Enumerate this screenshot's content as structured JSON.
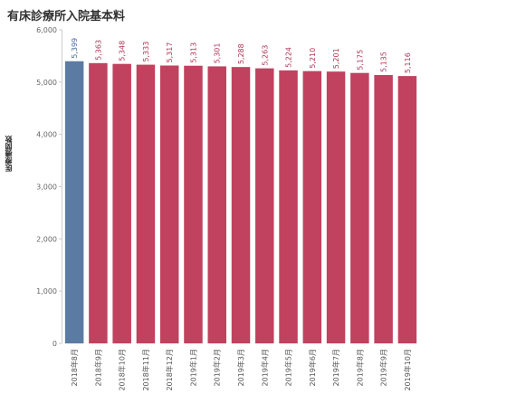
{
  "title": "有床診療所入院基本料",
  "chart_data": {
    "type": "bar",
    "title": "有床診療所入院基本料",
    "xlabel": "",
    "ylabel": "医療機関数",
    "ylim": [
      0,
      6000
    ],
    "yticks": [
      0,
      1000,
      2000,
      3000,
      4000,
      5000,
      6000
    ],
    "ytick_labels": [
      "0",
      "1,000",
      "2,000",
      "3,000",
      "4,000",
      "5,000",
      "6,000"
    ],
    "grid": false,
    "categories": [
      "2018年8月",
      "2018年9月",
      "2018年10月",
      "2018年11月",
      "2018年12月",
      "2019年1月",
      "2019年2月",
      "2019年3月",
      "2019年4月",
      "2019年5月",
      "2019年6月",
      "2019年7月",
      "2019年8月",
      "2019年9月",
      "2019年10月"
    ],
    "values": [
      5399,
      5363,
      5348,
      5333,
      5317,
      5313,
      5301,
      5288,
      5263,
      5224,
      5210,
      5201,
      5175,
      5135,
      5116
    ],
    "value_labels": [
      "5,399",
      "5,363",
      "5,348",
      "5,333",
      "5,317",
      "5,313",
      "5,301",
      "5,288",
      "5,263",
      "5,224",
      "5,210",
      "5,201",
      "5,175",
      "5,135",
      "5,116"
    ],
    "colors": [
      "#5b7ba3",
      "#c0425f",
      "#c0425f",
      "#c0425f",
      "#c0425f",
      "#c0425f",
      "#c0425f",
      "#c0425f",
      "#c0425f",
      "#c0425f",
      "#c0425f",
      "#c0425f",
      "#c0425f",
      "#c0425f",
      "#c0425f"
    ],
    "label_colors": [
      "#4a6a94",
      "#b03456",
      "#b03456",
      "#b03456",
      "#b03456",
      "#b03456",
      "#b03456",
      "#b03456",
      "#b03456",
      "#b03456",
      "#b03456",
      "#b03456",
      "#b03456",
      "#b03456",
      "#b03456"
    ]
  }
}
